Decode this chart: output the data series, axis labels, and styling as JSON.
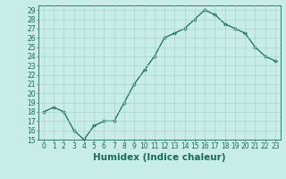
{
  "title": "",
  "xlabel": "Humidex (Indice chaleur)",
  "ylabel": "",
  "x_values": [
    0,
    1,
    2,
    3,
    4,
    5,
    6,
    7,
    8,
    9,
    10,
    11,
    12,
    13,
    14,
    15,
    16,
    17,
    18,
    19,
    20,
    21,
    22,
    23
  ],
  "y_values": [
    18,
    18.5,
    18,
    16,
    15,
    16.5,
    17,
    17,
    19,
    21,
    22.5,
    24,
    26,
    26.5,
    27,
    28,
    29,
    28.5,
    27.5,
    27,
    26.5,
    25,
    24,
    23.5
  ],
  "line_color": "#1a6b5a",
  "marker": "D",
  "marker_size": 2.0,
  "bg_color": "#c8ede8",
  "grid_color": "#a8d4cc",
  "ylim": [
    15,
    29.5
  ],
  "xlim": [
    -0.5,
    23.5
  ],
  "yticks": [
    15,
    16,
    17,
    18,
    19,
    20,
    21,
    22,
    23,
    24,
    25,
    26,
    27,
    28,
    29
  ],
  "xticks": [
    0,
    1,
    2,
    3,
    4,
    5,
    6,
    7,
    8,
    9,
    10,
    11,
    12,
    13,
    14,
    15,
    16,
    17,
    18,
    19,
    20,
    21,
    22,
    23
  ],
  "tick_fontsize": 5.5,
  "xlabel_fontsize": 7.5,
  "tick_color": "#1a6b5a",
  "linewidth": 0.9
}
